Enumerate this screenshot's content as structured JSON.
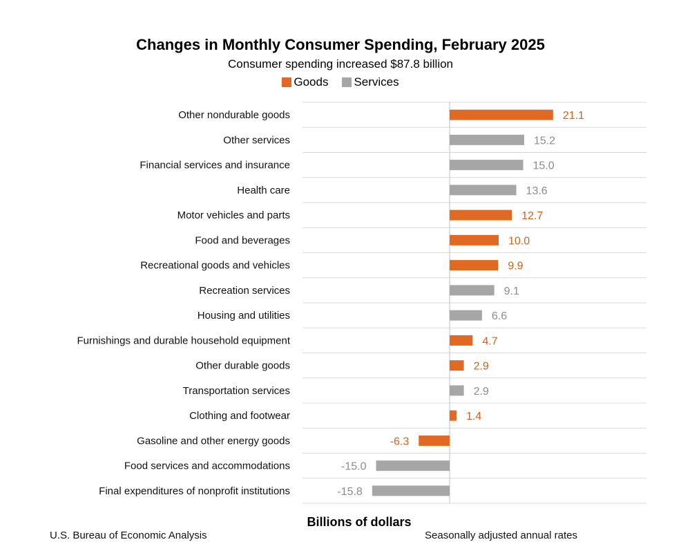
{
  "chart_data": {
    "type": "bar",
    "orientation": "horizontal",
    "title": "Changes in Monthly Consumer Spending, February 2025",
    "subtitle": "Consumer spending increased $87.8 billion",
    "xlabel": "Billions of dollars",
    "ylabel": "",
    "xlim": [
      -18,
      30
    ],
    "legend": {
      "position": "top-center",
      "entries": [
        {
          "name": "Goods",
          "color": "#E06A23"
        },
        {
          "name": "Services",
          "color": "#A6A6A6"
        }
      ]
    },
    "categories": [
      "Other nondurable goods",
      "Other services",
      "Financial services and insurance",
      "Health care",
      "Motor vehicles and parts",
      "Food and beverages",
      "Recreational goods and vehicles",
      "Recreation services",
      "Housing and utilities",
      "Furnishings and durable household equipment",
      "Other durable goods",
      "Transportation services",
      "Clothing and footwear",
      "Gasoline and other energy goods",
      "Food services and accommodations",
      "Final expenditures of nonprofit institutions"
    ],
    "values": [
      21.1,
      15.2,
      15.0,
      13.6,
      12.7,
      10.0,
      9.9,
      9.1,
      6.6,
      4.7,
      2.9,
      2.9,
      1.4,
      -6.3,
      -15.0,
      -15.8
    ],
    "value_labels": [
      "21.1",
      "15.2",
      "15.0",
      "13.6",
      "12.7",
      "10.0",
      "9.9",
      "9.1",
      "6.6",
      "4.7",
      "2.9",
      "2.9",
      "1.4",
      "-6.3",
      "-15.0",
      "-15.8"
    ],
    "series_assignment": [
      "Goods",
      "Services",
      "Services",
      "Services",
      "Goods",
      "Goods",
      "Goods",
      "Services",
      "Services",
      "Goods",
      "Goods",
      "Services",
      "Goods",
      "Goods",
      "Services",
      "Services"
    ],
    "label_colors": {
      "Goods": "#D4601C",
      "Services": "#8C8C8C"
    },
    "grid": true
  },
  "footer": {
    "source": "U.S. Bureau of Economic Analysis",
    "note": "Seasonally adjusted annual rates"
  }
}
